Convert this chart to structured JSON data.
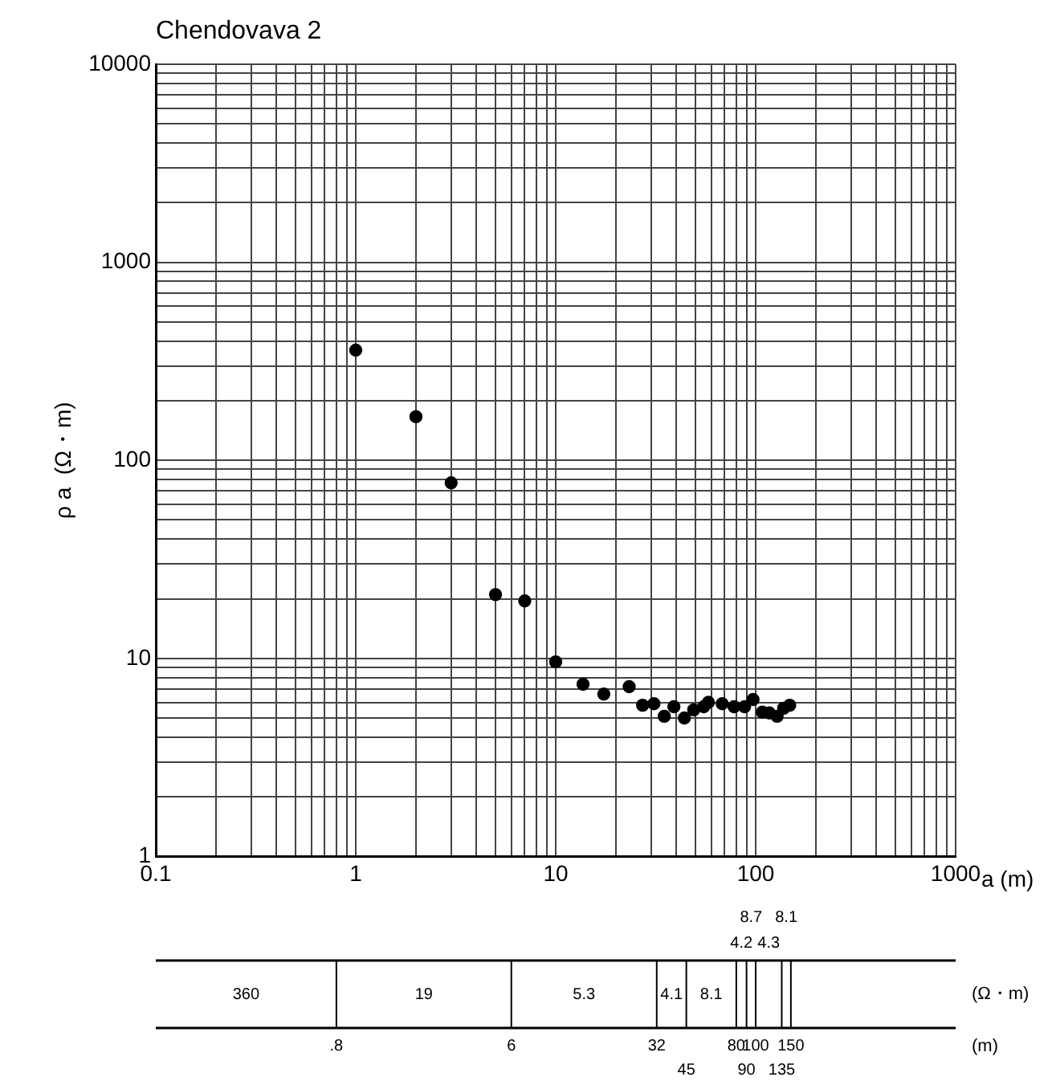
{
  "chart_data": [
    {
      "type": "scatter",
      "title": "Chendovava 2",
      "xlabel": "a (m)",
      "ylabel": "ρ a  (Ω・m)",
      "x": [
        1,
        2,
        3,
        5,
        7,
        10,
        13.7,
        17.4,
        23.3,
        27.2,
        31,
        34.9,
        39,
        44,
        49,
        55,
        58,
        68,
        78,
        88,
        97,
        108,
        117,
        128,
        138,
        148
      ],
      "series": [
        {
          "color": "#000000",
          "values": [
            360,
            166,
            77,
            21,
            19.5,
            9.6,
            7.4,
            6.6,
            7.2,
            5.8,
            5.9,
            5.1,
            5.7,
            5.0,
            5.5,
            5.7,
            6.0,
            5.9,
            5.7,
            5.7,
            6.2,
            5.35,
            5.3,
            5.1,
            5.6,
            5.8
          ]
        }
      ],
      "marker": "circle",
      "log": "xy",
      "grid": true,
      "legend": false,
      "xlim": [
        0.1,
        1000
      ],
      "ylim": [
        1,
        10000
      ],
      "xticks": [
        0.1,
        {
          "value": 0.2,
          "label": null
        },
        {
          "value": 0.3,
          "label": null
        },
        {
          "value": 0.4,
          "label": null
        },
        {
          "value": 0.5,
          "label": null
        },
        {
          "value": 0.6,
          "label": null
        },
        {
          "value": 0.7,
          "label": null
        },
        {
          "value": 0.8,
          "label": null
        },
        {
          "value": 0.9,
          "label": null
        },
        1,
        {
          "value": 2,
          "label": null
        },
        {
          "value": 3,
          "label": null
        },
        {
          "value": 4,
          "label": null
        },
        {
          "value": 5,
          "label": null
        },
        {
          "value": 6,
          "label": null
        },
        {
          "value": 7,
          "label": null
        },
        {
          "value": 8,
          "label": null
        },
        {
          "value": 9,
          "label": null
        },
        10,
        {
          "value": 20,
          "label": null
        },
        {
          "value": 30,
          "label": null
        },
        {
          "value": 40,
          "label": null
        },
        {
          "value": 50,
          "label": null
        },
        {
          "value": 60,
          "label": null
        },
        {
          "value": 70,
          "label": null
        },
        {
          "value": 80,
          "label": null
        },
        {
          "value": 90,
          "label": null
        },
        100,
        {
          "value": 200,
          "label": null
        },
        {
          "value": 300,
          "label": null
        },
        {
          "value": 400,
          "label": null
        },
        {
          "value": 500,
          "label": null
        },
        {
          "value": 600,
          "label": null
        },
        {
          "value": 700,
          "label": null
        },
        {
          "value": 800,
          "label": null
        },
        {
          "value": 900,
          "label": null
        },
        1000
      ],
      "yticks": [
        1,
        {
          "value": 2,
          "label": null
        },
        {
          "value": 3,
          "label": null
        },
        {
          "value": 4,
          "label": null
        },
        {
          "value": 5,
          "label": null
        },
        {
          "value": 6,
          "label": null
        },
        {
          "value": 7,
          "label": null
        },
        {
          "value": 8,
          "label": null
        },
        {
          "value": 9,
          "label": null
        },
        10,
        {
          "value": 20,
          "label": null
        },
        {
          "value": 30,
          "label": null
        },
        {
          "value": 40,
          "label": null
        },
        {
          "value": 50,
          "label": null
        },
        {
          "value": 60,
          "label": null
        },
        {
          "value": 70,
          "label": null
        },
        {
          "value": 80,
          "label": null
        },
        {
          "value": 90,
          "label": null
        },
        100,
        {
          "value": 200,
          "label": null
        },
        {
          "value": 300,
          "label": null
        },
        {
          "value": 400,
          "label": null
        },
        {
          "value": 500,
          "label": null
        },
        {
          "value": 600,
          "label": null
        },
        {
          "value": 700,
          "label": null
        },
        {
          "value": 800,
          "label": null
        },
        {
          "value": 900,
          "label": null
        },
        1000,
        {
          "value": 2000,
          "label": null
        },
        {
          "value": 3000,
          "label": null
        },
        {
          "value": 4000,
          "label": null
        },
        {
          "value": 5000,
          "label": null
        },
        {
          "value": 6000,
          "label": null
        },
        {
          "value": 7000,
          "label": null
        },
        {
          "value": 8000,
          "label": null
        },
        {
          "value": 9000,
          "label": null
        },
        10000
      ]
    },
    {
      "type": "other",
      "xlabel": "(m)",
      "ylabel": "(Ω・m)",
      "categories": [
        "360",
        "19",
        "5.3",
        "4.1",
        "8.1",
        "4.2",
        "8.7",
        "4.3",
        "8.1"
      ],
      "annotations": [
        ".8",
        "6",
        "32",
        "45",
        "80",
        "90",
        "100",
        "135",
        "150"
      ]
    }
  ]
}
